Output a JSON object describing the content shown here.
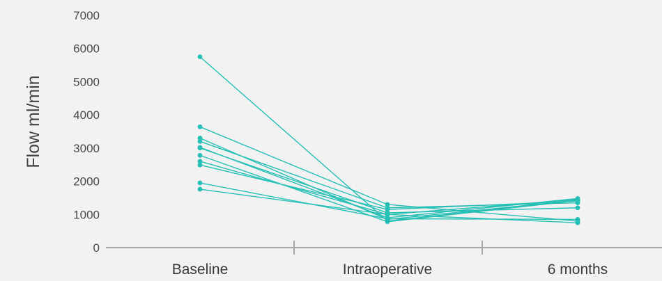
{
  "chart_data": {
    "type": "line",
    "title": "",
    "xlabel": "",
    "ylabel": "Flow ml/min",
    "categories": [
      "Baseline",
      "Intraoperative",
      "6 months"
    ],
    "ylim": [
      0,
      7000
    ],
    "yticks": [
      0,
      1000,
      2000,
      3000,
      4000,
      5000,
      6000,
      7000
    ],
    "grid": false,
    "legend": "none",
    "series_color": "#26bfb5",
    "axis_color": "#a6a6a6",
    "series": [
      {
        "values": [
          5750,
          800,
          1430
        ]
      },
      {
        "values": [
          3640,
          1300,
          800
        ]
      },
      {
        "values": [
          3300,
          850,
          1430
        ]
      },
      {
        "values": [
          3200,
          1200,
          1350
        ]
      },
      {
        "values": [
          3020,
          900,
          1480
        ]
      },
      {
        "values": [
          3000,
          1050,
          1200
        ]
      },
      {
        "values": [
          2780,
          780,
          1420
        ]
      },
      {
        "values": [
          2600,
          1000,
          1450
        ]
      },
      {
        "values": [
          2490,
          1150,
          1400
        ]
      },
      {
        "values": [
          1950,
          870,
          850
        ]
      },
      {
        "values": [
          1760,
          1000,
          750
        ]
      }
    ]
  }
}
